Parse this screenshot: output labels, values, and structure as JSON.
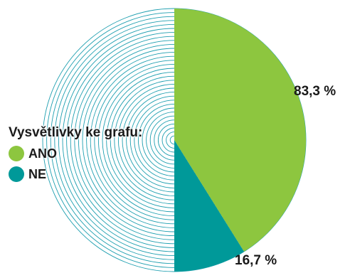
{
  "chart_data": {
    "type": "pie",
    "title": "",
    "legend_title": "Vysvětlivky ke grafu:",
    "legend_position": "left",
    "slices": [
      {
        "name": "ANO",
        "value": 83.3,
        "label": "83,3 %",
        "color": "#8dc63f",
        "fill_style": "solid"
      },
      {
        "name": "NE",
        "value": 16.7,
        "label": "16,7 %",
        "color": "#009999",
        "fill_style": "solid"
      }
    ],
    "remaining_area_style": "concentric-rings",
    "ring_color": "#1f9fb0"
  }
}
